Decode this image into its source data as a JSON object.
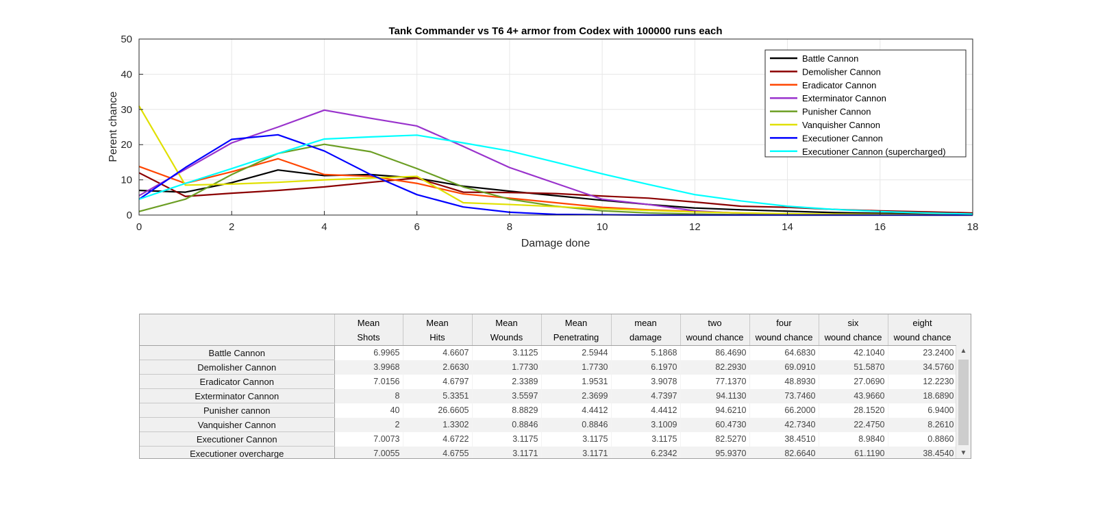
{
  "chart_data": {
    "type": "line",
    "title": "Tank Commander vs T6 4+ armor from Codex with 100000 runs each",
    "xlabel": "Damage done",
    "ylabel": "Perent chance",
    "xlim": [
      0,
      18
    ],
    "ylim": [
      0,
      50
    ],
    "xticks": [
      0,
      2,
      4,
      6,
      8,
      10,
      12,
      14,
      16,
      18
    ],
    "yticks": [
      0,
      10,
      20,
      30,
      40,
      50
    ],
    "grid": true,
    "legend_position": "top-right",
    "x": [
      0,
      1,
      2,
      3,
      4,
      5,
      6,
      7,
      8,
      9,
      10,
      11,
      12,
      13,
      14,
      15,
      16,
      17,
      18
    ],
    "series": [
      {
        "name": "Battle Cannon",
        "color": "#000000",
        "values": [
          7,
          6.5,
          9.2,
          12.8,
          11.2,
          11.5,
          10.5,
          8.2,
          6.8,
          5.5,
          4.2,
          3,
          2,
          1.5,
          1.1,
          0.7,
          0.5,
          0.3,
          0.2
        ]
      },
      {
        "name": "Demolisher Cannon",
        "color": "#8b0000",
        "values": [
          12,
          5.3,
          6.2,
          7,
          8,
          9.3,
          10.5,
          6.5,
          6.4,
          6.1,
          5.4,
          4.8,
          3.7,
          2.5,
          2.2,
          1.6,
          1.2,
          0.9,
          0.6
        ]
      },
      {
        "name": "Eradicator Cannon",
        "color": "#ff4500",
        "values": [
          13.8,
          9,
          12.3,
          16,
          11.5,
          11,
          9,
          6,
          4.8,
          3.5,
          2.2,
          1.5,
          1,
          0.6,
          0.3,
          0.2,
          0.1,
          0,
          0
        ]
      },
      {
        "name": "Exterminator Cannon",
        "color": "#9932cc",
        "values": [
          5.5,
          13,
          20.5,
          25,
          29.8,
          27.5,
          25.3,
          19.5,
          13.5,
          9,
          4.5,
          3,
          1.2,
          0.5,
          0.2,
          0.1,
          0.1,
          0.1,
          0.1
        ]
      },
      {
        "name": "Punisher Cannon",
        "color": "#6b9e23",
        "values": [
          1,
          4.5,
          11.5,
          17.5,
          20.1,
          18,
          13.2,
          8,
          4.5,
          2.5,
          1.2,
          0.6,
          0.3,
          0.1,
          0,
          0,
          0,
          0,
          0
        ]
      },
      {
        "name": "Vanquisher Cannon",
        "color": "#e0e000",
        "values": [
          31,
          8.5,
          8.8,
          9.3,
          10,
          10.5,
          11,
          3.5,
          3,
          2.4,
          1.8,
          1.3,
          0.9,
          0.6,
          0.4,
          0.3,
          0.2,
          0.1,
          0.1
        ]
      },
      {
        "name": "Executioner Cannon",
        "color": "#0000ff",
        "values": [
          4.5,
          13.5,
          21.5,
          22.8,
          18.2,
          11.5,
          5.8,
          2.3,
          0.8,
          0.2,
          0.1,
          0,
          0,
          0,
          0,
          0,
          0,
          0,
          0
        ]
      },
      {
        "name": "Executioner Cannon (supercharged)",
        "color": "#00ffff",
        "values": [
          4.5,
          9,
          13.2,
          17.5,
          21.6,
          22.2,
          22.7,
          20.5,
          18.2,
          15,
          11.7,
          8.7,
          5.8,
          4,
          2.5,
          1.6,
          1,
          0.6,
          0.3
        ]
      }
    ]
  },
  "table": {
    "headers": [
      [
        "Mean",
        "Shots"
      ],
      [
        "Mean",
        "Hits"
      ],
      [
        "Mean",
        "Wounds"
      ],
      [
        "Mean",
        "Penetrating"
      ],
      [
        "mean",
        "damage"
      ],
      [
        "two",
        "wound chance"
      ],
      [
        "four",
        "wound chance"
      ],
      [
        "six",
        "wound chance"
      ],
      [
        "eight",
        "wound chance"
      ]
    ],
    "rows": [
      {
        "name": "Battle Cannon",
        "cells": [
          "6.9965",
          "4.6607",
          "3.1125",
          "2.5944",
          "5.1868",
          "86.4690",
          "64.6830",
          "42.1040",
          "23.2400"
        ]
      },
      {
        "name": "Demolisher Cannon",
        "cells": [
          "3.9968",
          "2.6630",
          "1.7730",
          "1.7730",
          "6.1970",
          "82.2930",
          "69.0910",
          "51.5870",
          "34.5760"
        ]
      },
      {
        "name": "Eradicator Cannon",
        "cells": [
          "7.0156",
          "4.6797",
          "2.3389",
          "1.9531",
          "3.9078",
          "77.1370",
          "48.8930",
          "27.0690",
          "12.2230"
        ]
      },
      {
        "name": "Exterminator Cannon",
        "cells": [
          "8",
          "5.3351",
          "3.5597",
          "2.3699",
          "4.7397",
          "94.1130",
          "73.7460",
          "43.9660",
          "18.6890"
        ]
      },
      {
        "name": "Punisher cannon",
        "cells": [
          "40",
          "26.6605",
          "8.8829",
          "4.4412",
          "4.4412",
          "94.6210",
          "66.2000",
          "28.1520",
          "6.9400"
        ]
      },
      {
        "name": "Vanquisher Cannon",
        "cells": [
          "2",
          "1.3302",
          "0.8846",
          "0.8846",
          "3.1009",
          "60.4730",
          "42.7340",
          "22.4750",
          "8.2610"
        ]
      },
      {
        "name": "Executioner Cannon",
        "cells": [
          "7.0073",
          "4.6722",
          "3.1175",
          "3.1175",
          "3.1175",
          "82.5270",
          "38.4510",
          "8.9840",
          "0.8860"
        ]
      },
      {
        "name": "Executioner overcharge",
        "cells": [
          "7.0055",
          "4.6755",
          "3.1171",
          "3.1171",
          "6.2342",
          "95.9370",
          "82.6640",
          "61.1190",
          "38.4540"
        ]
      }
    ]
  }
}
